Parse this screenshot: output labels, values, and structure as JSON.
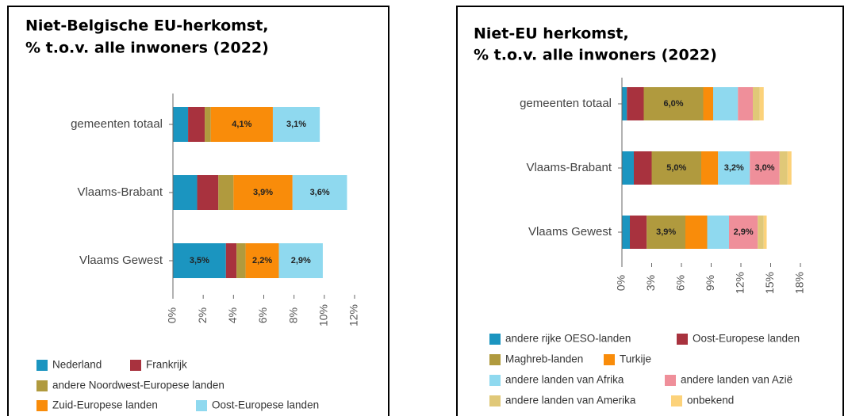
{
  "chart_data": [
    {
      "type": "bar",
      "orientation": "horizontal",
      "stacked": true,
      "title": [
        "Niet-Belgische EU-herkomst,",
        "% t.o.v. alle inwoners (2022)"
      ],
      "categories": [
        "gemeenten totaal",
        "Vlaams-Brabant",
        "Vlaams Gewest"
      ],
      "series": [
        {
          "name": "Nederland",
          "color": "#1b95c0",
          "values": [
            1.0,
            1.6,
            3.5
          ],
          "value_labels": [
            null,
            null,
            "3,5%"
          ]
        },
        {
          "name": "Frankrijk",
          "color": "#a8323e",
          "values": [
            1.1,
            1.4,
            0.7
          ],
          "value_labels": [
            null,
            null,
            null
          ]
        },
        {
          "name": "andere Noordwest-Europese landen",
          "color": "#b09a3e",
          "values": [
            0.4,
            1.0,
            0.6
          ],
          "value_labels": [
            null,
            null,
            null
          ]
        },
        {
          "name": "Zuid-Europese landen",
          "color": "#f98c0a",
          "values": [
            4.1,
            3.9,
            2.2
          ],
          "value_labels": [
            "4,1%",
            "3,9%",
            "2,2%"
          ]
        },
        {
          "name": "Oost-Europese landen",
          "color": "#8fd9ef",
          "values": [
            3.1,
            3.6,
            2.9
          ],
          "value_labels": [
            "3,1%",
            "3,6%",
            "2,9%"
          ]
        }
      ],
      "xlim": [
        0,
        12
      ],
      "xticks": [
        {
          "value": 0,
          "label": "0%"
        },
        {
          "value": 2,
          "label": "2%"
        },
        {
          "value": 4,
          "label": "4%"
        },
        {
          "value": 6,
          "label": "6%"
        },
        {
          "value": 8,
          "label": "8%"
        },
        {
          "value": 10,
          "label": "10%"
        },
        {
          "value": 12,
          "label": "12%"
        }
      ]
    },
    {
      "type": "bar",
      "orientation": "horizontal",
      "stacked": true,
      "title": [
        "Niet-EU herkomst,",
        "% t.o.v. alle inwoners (2022)"
      ],
      "categories": [
        "gemeenten totaal",
        "Vlaams-Brabant",
        "Vlaams Gewest"
      ],
      "series": [
        {
          "name": "andere rijke OESO-landen",
          "color": "#1b95c0",
          "values": [
            0.5,
            1.2,
            0.8
          ],
          "value_labels": [
            null,
            null,
            null
          ]
        },
        {
          "name": "Oost-Europese landen",
          "color": "#a8323e",
          "values": [
            1.7,
            1.8,
            1.7
          ],
          "value_labels": [
            null,
            null,
            null
          ]
        },
        {
          "name": "Maghreb-landen",
          "color": "#b09a3e",
          "values": [
            6.0,
            5.0,
            3.9
          ],
          "value_labels": [
            "6,0%",
            "5,0%",
            "3,9%"
          ]
        },
        {
          "name": "Turkije",
          "color": "#f98c0a",
          "values": [
            1.0,
            1.7,
            2.2
          ],
          "value_labels": [
            null,
            null,
            null
          ]
        },
        {
          "name": "andere landen van Afrika",
          "color": "#8fd9ef",
          "values": [
            2.5,
            3.2,
            2.2
          ],
          "value_labels": [
            null,
            "3,2%",
            null
          ]
        },
        {
          "name": "andere landen van Azië",
          "color": "#ef8f9a",
          "values": [
            1.5,
            3.0,
            2.9
          ],
          "value_labels": [
            null,
            "3,0%",
            "2,9%"
          ]
        },
        {
          "name": "andere landen van Amerika",
          "color": "#e0c878",
          "values": [
            0.7,
            0.8,
            0.6
          ],
          "value_labels": [
            null,
            null,
            null
          ]
        },
        {
          "name": "onbekend",
          "color": "#fcd27a",
          "values": [
            0.4,
            0.4,
            0.3
          ],
          "value_labels": [
            null,
            null,
            null
          ]
        }
      ],
      "xlim": [
        0,
        18
      ],
      "xticks": [
        {
          "value": 0,
          "label": "0%"
        },
        {
          "value": 3,
          "label": "3%"
        },
        {
          "value": 6,
          "label": "6%"
        },
        {
          "value": 9,
          "label": "9%"
        },
        {
          "value": 12,
          "label": "12%"
        },
        {
          "value": 15,
          "label": "15%"
        },
        {
          "value": 18,
          "label": "18%"
        }
      ]
    }
  ]
}
